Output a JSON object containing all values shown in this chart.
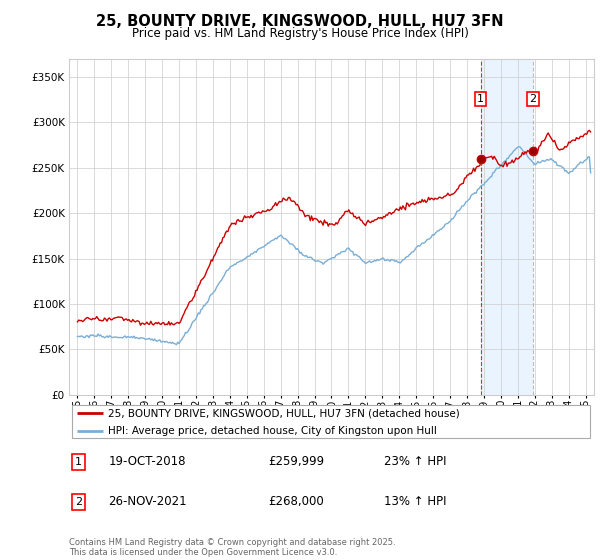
{
  "title": "25, BOUNTY DRIVE, KINGSWOOD, HULL, HU7 3FN",
  "subtitle": "Price paid vs. HM Land Registry's House Price Index (HPI)",
  "legend_line1": "25, BOUNTY DRIVE, KINGSWOOD, HULL, HU7 3FN (detached house)",
  "legend_line2": "HPI: Average price, detached house, City of Kingston upon Hull",
  "annotation1": {
    "num": "1",
    "date": "19-OCT-2018",
    "price": "£259,999",
    "pct": "23% ↑ HPI"
  },
  "annotation2": {
    "num": "2",
    "date": "26-NOV-2021",
    "price": "£268,000",
    "pct": "13% ↑ HPI"
  },
  "footnote": "Contains HM Land Registry data © Crown copyright and database right 2025.\nThis data is licensed under the Open Government Licence v3.0.",
  "red_color": "#cc0000",
  "blue_color": "#7aaed6",
  "vline1_color": "#cc0000",
  "vline2_color": "#aaaaaa",
  "shade_color": "#ddeeff",
  "grid_color": "#cccccc",
  "bg_color": "#ffffff",
  "ylim": [
    0,
    370000
  ],
  "yticks": [
    0,
    50000,
    100000,
    150000,
    200000,
    250000,
    300000,
    350000
  ],
  "sale1_x": 2018.8,
  "sale2_x": 2021.9,
  "xmin": 1994.5,
  "xmax": 2025.5,
  "sale1_price": 259999,
  "sale2_price": 268000
}
